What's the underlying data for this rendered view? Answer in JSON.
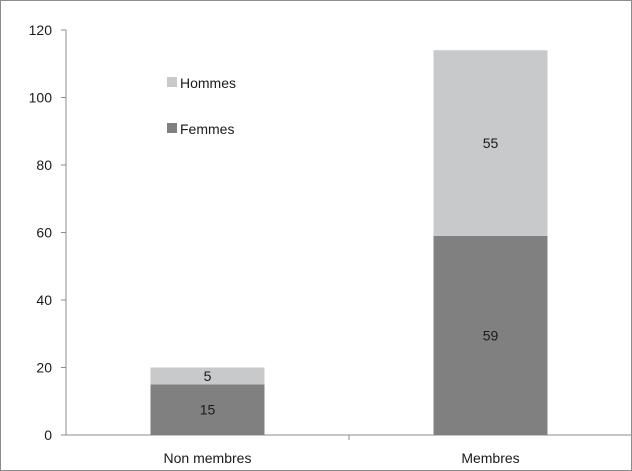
{
  "chart_data": {
    "type": "bar",
    "stacked": true,
    "categories": [
      "Non membres",
      "Membres"
    ],
    "series": [
      {
        "name": "Femmes",
        "values": [
          15,
          59
        ],
        "color": "#808080",
        "labels": [
          "15",
          "59"
        ]
      },
      {
        "name": "Hommes",
        "values": [
          5,
          55
        ],
        "color": "#c8c9cb",
        "labels": [
          "5",
          "55"
        ]
      }
    ],
    "ylim": [
      0,
      120
    ],
    "y_ticks": [
      "0",
      "20",
      "40",
      "60",
      "80",
      "100",
      "120"
    ],
    "grid": false,
    "legend": {
      "placement": "top-left",
      "entries": [
        {
          "name": "Hommes",
          "color": "#c8c9cb"
        },
        {
          "name": "Femmes",
          "color": "#808080"
        }
      ]
    },
    "title": "",
    "xlabel": "",
    "ylabel": ""
  }
}
